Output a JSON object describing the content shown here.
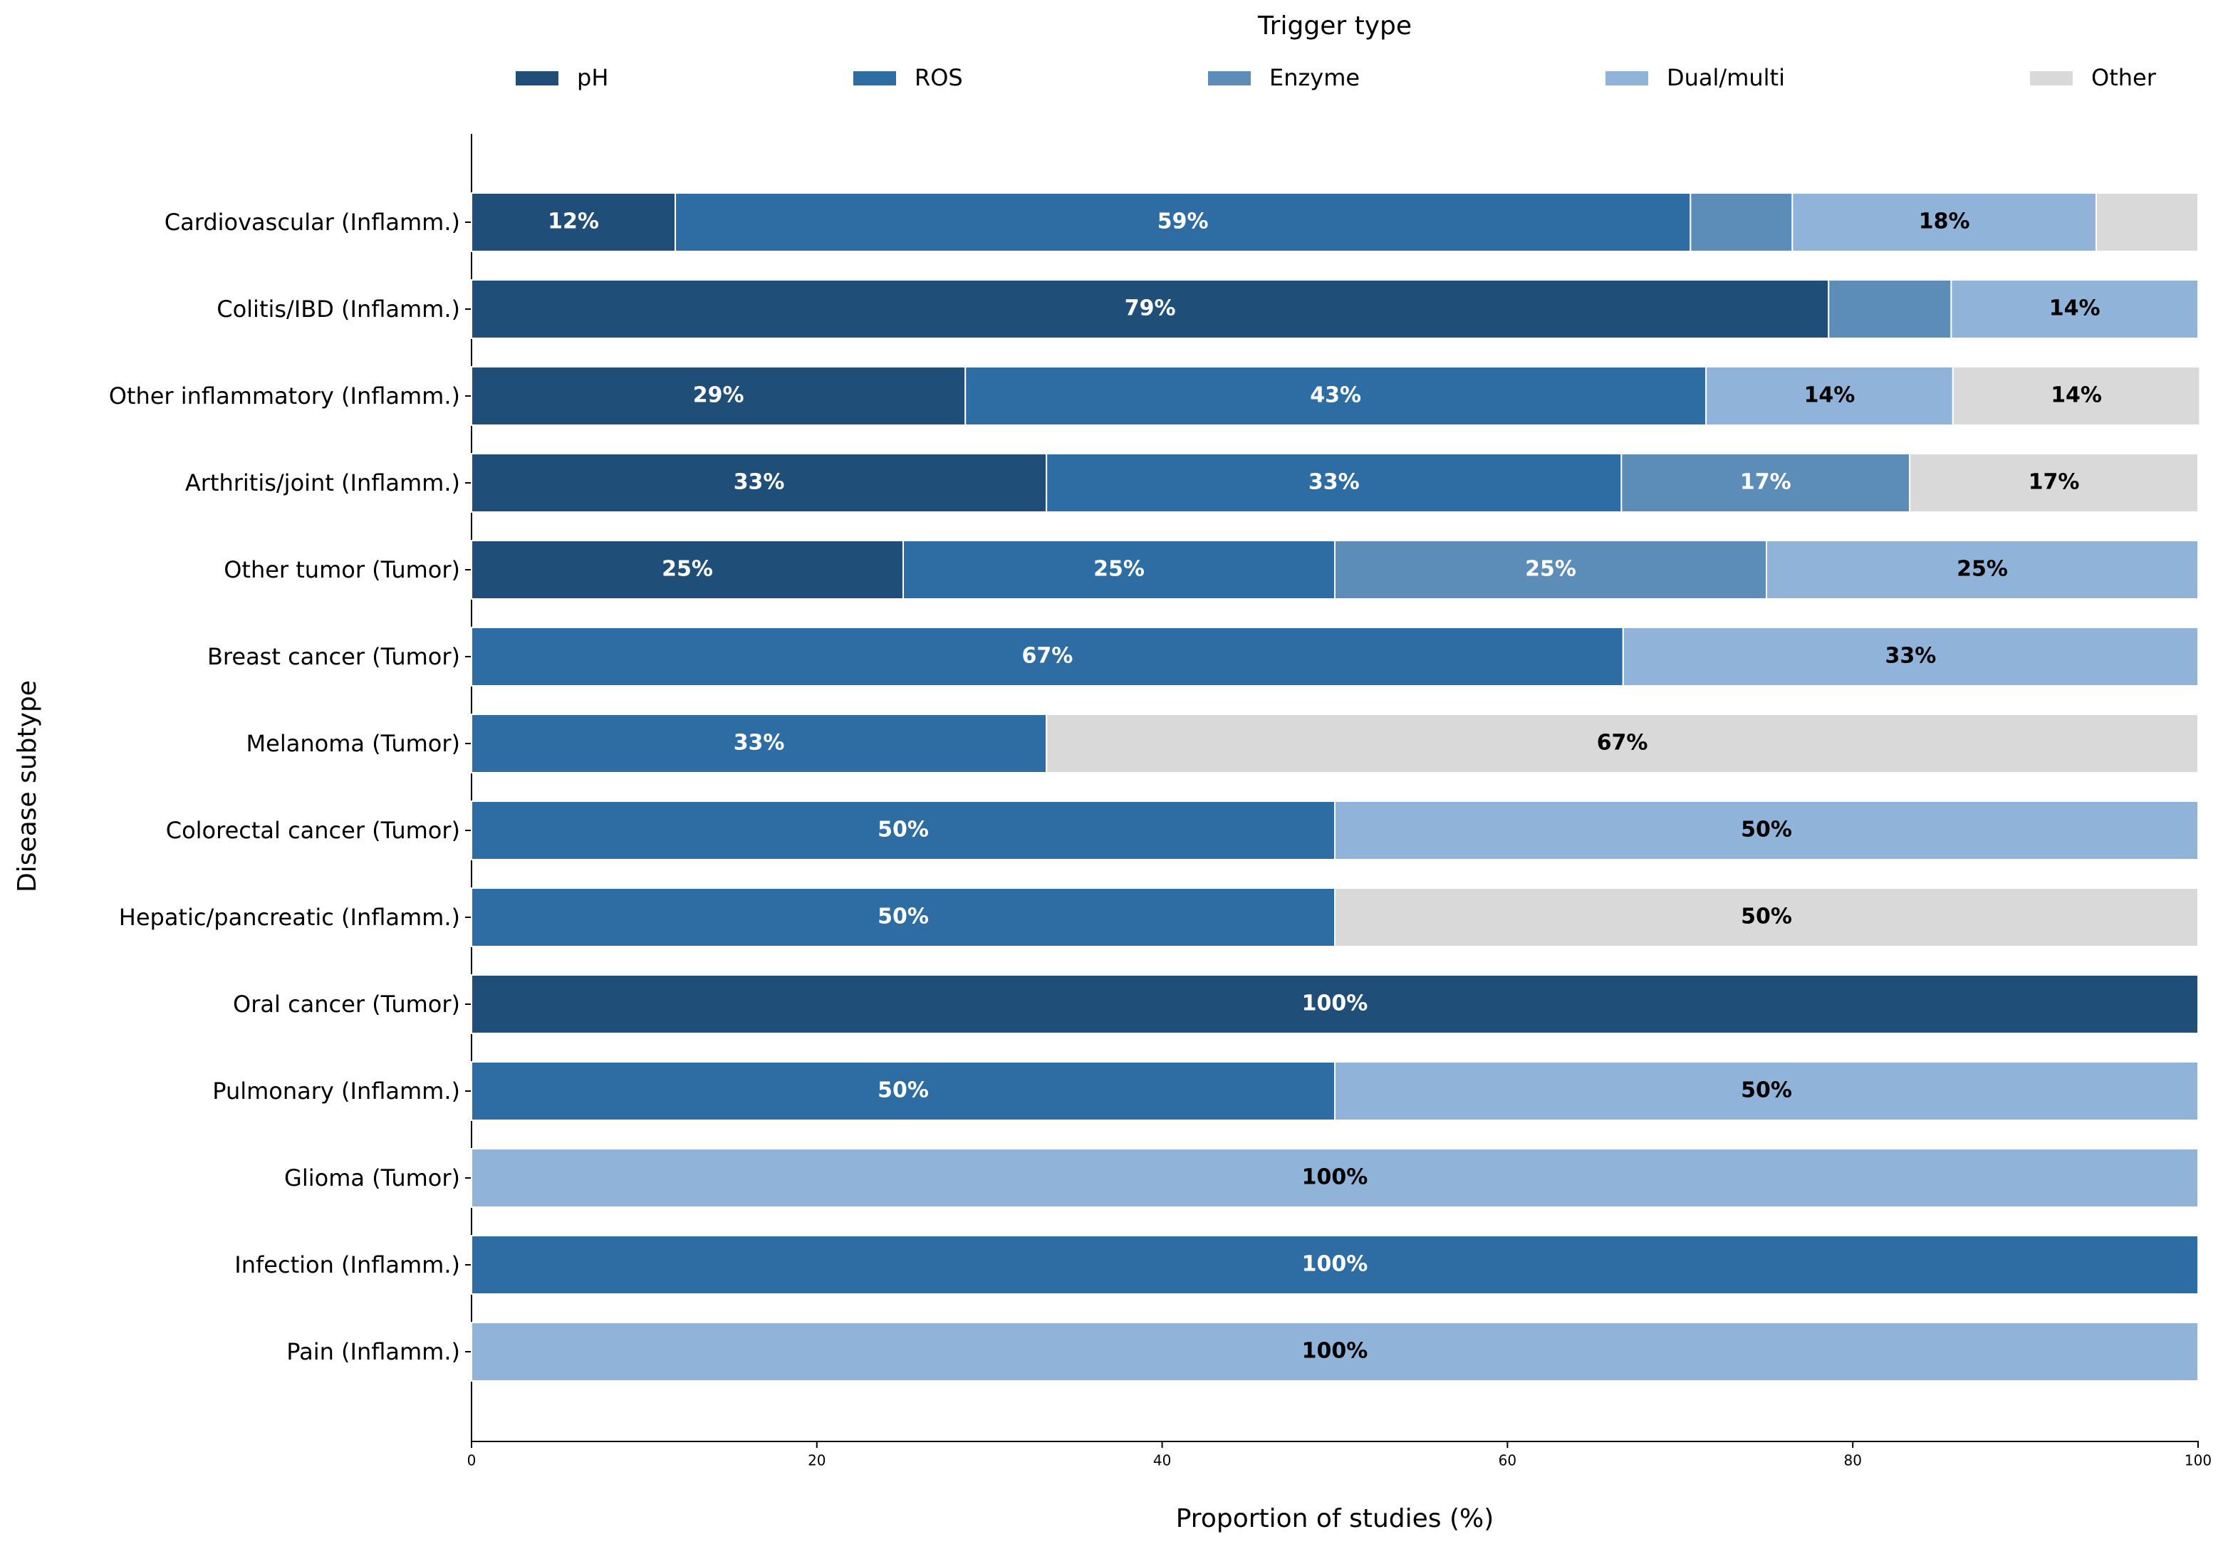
{
  "chart_data": {
    "type": "stacked_barh",
    "legend_title": "Trigger type",
    "legend": "top",
    "xlabel": "Proportion of studies (%)",
    "ylabel": "Disease subtype",
    "categories": [
      "Cardiovascular (Inflamm.)",
      "Colitis/IBD (Inflamm.)",
      "Other inflammatory (Inflamm.)",
      "Arthritis/joint (Inflamm.)",
      "Other tumor (Tumor)",
      "Breast cancer (Tumor)",
      "Melanoma (Tumor)",
      "Colorectal cancer (Tumor)",
      "Hepatic/pancreatic (Inflamm.)",
      "Oral cancer (Tumor)",
      "Pulmonary (Inflamm.)",
      "Glioma (Tumor)",
      "Infection (Inflamm.)",
      "Pain (Inflamm.)"
    ],
    "series": [
      {
        "name": "pH",
        "color": "#1f4e79",
        "label_color": "#ffffff",
        "values": [
          11.8,
          78.6,
          28.6,
          33.3,
          25,
          null,
          null,
          null,
          null,
          100,
          null,
          null,
          null,
          null
        ],
        "value_labels": [
          "12%",
          "79%",
          "29%",
          "33%",
          "25%",
          null,
          null,
          null,
          null,
          "100%",
          null,
          null,
          null,
          null
        ]
      },
      {
        "name": "ROS",
        "color": "#2e6da4",
        "label_color": "#ffffff",
        "values": [
          58.8,
          null,
          42.9,
          33.3,
          25,
          66.7,
          33.3,
          50,
          50,
          null,
          50,
          null,
          100,
          null
        ],
        "value_labels": [
          "59%",
          null,
          "43%",
          "33%",
          "25%",
          "67%",
          "33%",
          "50%",
          "50%",
          null,
          "50%",
          null,
          "100%",
          null
        ]
      },
      {
        "name": "Enzyme",
        "color": "#5b8db8",
        "label_color": "#ffffff",
        "values": [
          5.9,
          7.1,
          null,
          16.7,
          25,
          null,
          null,
          null,
          null,
          null,
          null,
          null,
          null,
          null
        ],
        "value_labels": [
          null,
          null,
          null,
          "17%",
          "25%",
          null,
          null,
          null,
          null,
          null,
          null,
          null,
          null,
          null
        ]
      },
      {
        "name": "Dual/multi",
        "color": "#8fb3d9",
        "label_color": "#000000",
        "values": [
          17.6,
          14.3,
          14.3,
          null,
          25,
          33.3,
          null,
          50,
          null,
          null,
          50,
          100,
          null,
          100
        ],
        "value_labels": [
          "18%",
          "14%",
          "14%",
          null,
          "25%",
          "33%",
          null,
          "50%",
          null,
          null,
          "50%",
          "100%",
          null,
          "100%"
        ]
      },
      {
        "name": "Other",
        "color": "#d9d9d9",
        "label_color": "#000000",
        "values": [
          5.9,
          null,
          14.3,
          16.7,
          null,
          null,
          66.7,
          null,
          50,
          null,
          null,
          null,
          null,
          null
        ],
        "value_labels": [
          null,
          null,
          "14%",
          "17%",
          null,
          null,
          "67%",
          null,
          "50%",
          null,
          null,
          null,
          null,
          null
        ]
      }
    ],
    "xlim": [
      0,
      100
    ],
    "xticks": [
      0,
      20,
      40,
      60,
      80,
      100
    ]
  }
}
